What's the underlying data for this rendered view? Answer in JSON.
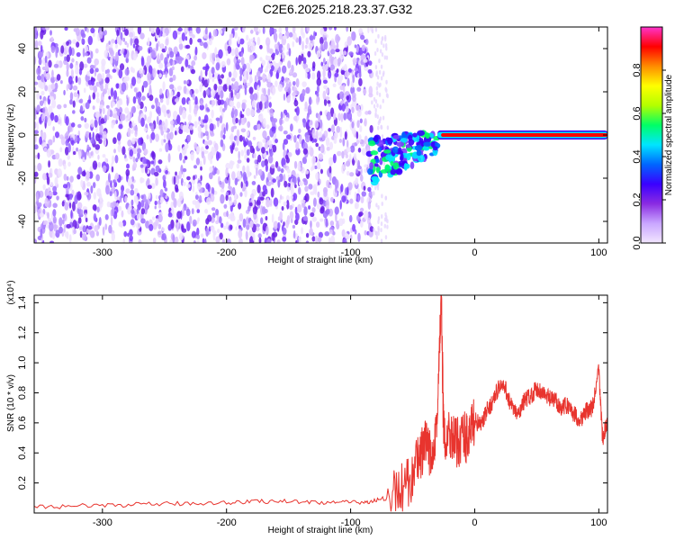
{
  "page_title": "C2E6.2025.218.23.37.G32",
  "chart_data": [
    {
      "type": "heatmap",
      "title": "C2E6.2025.218.23.37.G32",
      "xlabel": "Height of straight line (km)",
      "ylabel": "Frequency (Hz)",
      "xlim": [
        -355,
        107
      ],
      "ylim": [
        -50,
        50
      ],
      "x_ticks": [
        "-300",
        "-200",
        "-100",
        "0",
        "100"
      ],
      "y_ticks": [
        "-40",
        "-20",
        "0",
        "20",
        "40"
      ],
      "colorbar": {
        "label": "Normalized spectral amplitude",
        "range": [
          0,
          1
        ],
        "ticks": [
          "0.0",
          "0.2",
          "0.4",
          "0.6",
          "0.8"
        ],
        "colors": [
          "#f2e6ff",
          "#c9a6ff",
          "#8a2be2",
          "#3a00ff",
          "#0066ff",
          "#00e5ff",
          "#00ff66",
          "#b3ff00",
          "#ffff00",
          "#ff8c00",
          "#ff0000",
          "#ff33cc"
        ]
      },
      "regions": [
        {
          "name": "noise",
          "x_range": [
            -355,
            -83
          ],
          "freq_range": [
            -50,
            50
          ]
        },
        {
          "name": "fading-noise",
          "x_range": [
            -83,
            -70
          ],
          "freq_range": [
            -50,
            50
          ]
        },
        {
          "name": "signal-onset",
          "x_range": [
            -85,
            -30
          ],
          "freq_range": [
            -25,
            12
          ]
        },
        {
          "name": "carrier-line",
          "x_range": [
            -30,
            107
          ],
          "freq_range": [
            -1.5,
            1.5
          ]
        }
      ]
    },
    {
      "type": "line",
      "xlabel": "Height of straight line (km)",
      "ylabel": "SNR (10 * v/v)",
      "y_multiplier": "(x10⁴)",
      "xlim": [
        -355,
        107
      ],
      "ylim": [
        0,
        1.45
      ],
      "x_ticks": [
        "-300",
        "-200",
        "-100",
        "0",
        "100"
      ],
      "y_ticks": [
        "0.2",
        "0.4",
        "0.6",
        "0.8",
        "1.0",
        "1.2",
        "1.4"
      ],
      "color": "#e8342e",
      "x": [
        -355,
        -300,
        -250,
        -200,
        -160,
        -120,
        -90,
        -70,
        -55,
        -45,
        -40,
        -35,
        -30,
        -27,
        -25,
        -20,
        -15,
        -10,
        -5,
        0,
        5,
        10,
        15,
        20,
        25,
        30,
        35,
        40,
        45,
        50,
        55,
        60,
        65,
        70,
        75,
        80,
        85,
        90,
        95,
        100,
        103,
        107
      ],
      "y": [
        0.04,
        0.05,
        0.06,
        0.07,
        0.08,
        0.07,
        0.07,
        0.1,
        0.18,
        0.35,
        0.45,
        0.38,
        0.65,
        1.45,
        0.5,
        0.55,
        0.45,
        0.52,
        0.5,
        0.62,
        0.58,
        0.68,
        0.75,
        0.85,
        0.82,
        0.7,
        0.65,
        0.75,
        0.78,
        0.83,
        0.8,
        0.76,
        0.75,
        0.7,
        0.72,
        0.66,
        0.62,
        0.68,
        0.7,
        0.95,
        0.5,
        0.6
      ]
    }
  ]
}
